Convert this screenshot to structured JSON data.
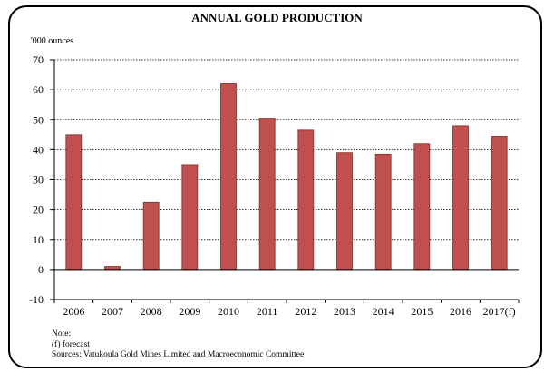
{
  "chart_data": {
    "type": "bar",
    "title": "ANNUAL GOLD PRODUCTION",
    "ylabel": "'000 ounces",
    "xlabel": "",
    "categories": [
      "2006",
      "2007",
      "2008",
      "2009",
      "2010",
      "2011",
      "2012",
      "2013",
      "2014",
      "2015",
      "2016",
      "2017(f)"
    ],
    "values": [
      45,
      1,
      22.5,
      35,
      62,
      50.5,
      46.5,
      39,
      38.5,
      42,
      48,
      44.5
    ],
    "ylim": [
      -10,
      70
    ],
    "yticks": [
      -10,
      0,
      10,
      20,
      30,
      40,
      50,
      60,
      70
    ],
    "grid": true,
    "legend": "none",
    "bar_color": "#c0504d",
    "bar_edge_color": "#7f2a27"
  },
  "notes": {
    "heading": "Note:",
    "forecast": "(f) forecast",
    "sources": "Sources: Vatukoula Gold Mines Limited and Macroeconomic Committee"
  }
}
